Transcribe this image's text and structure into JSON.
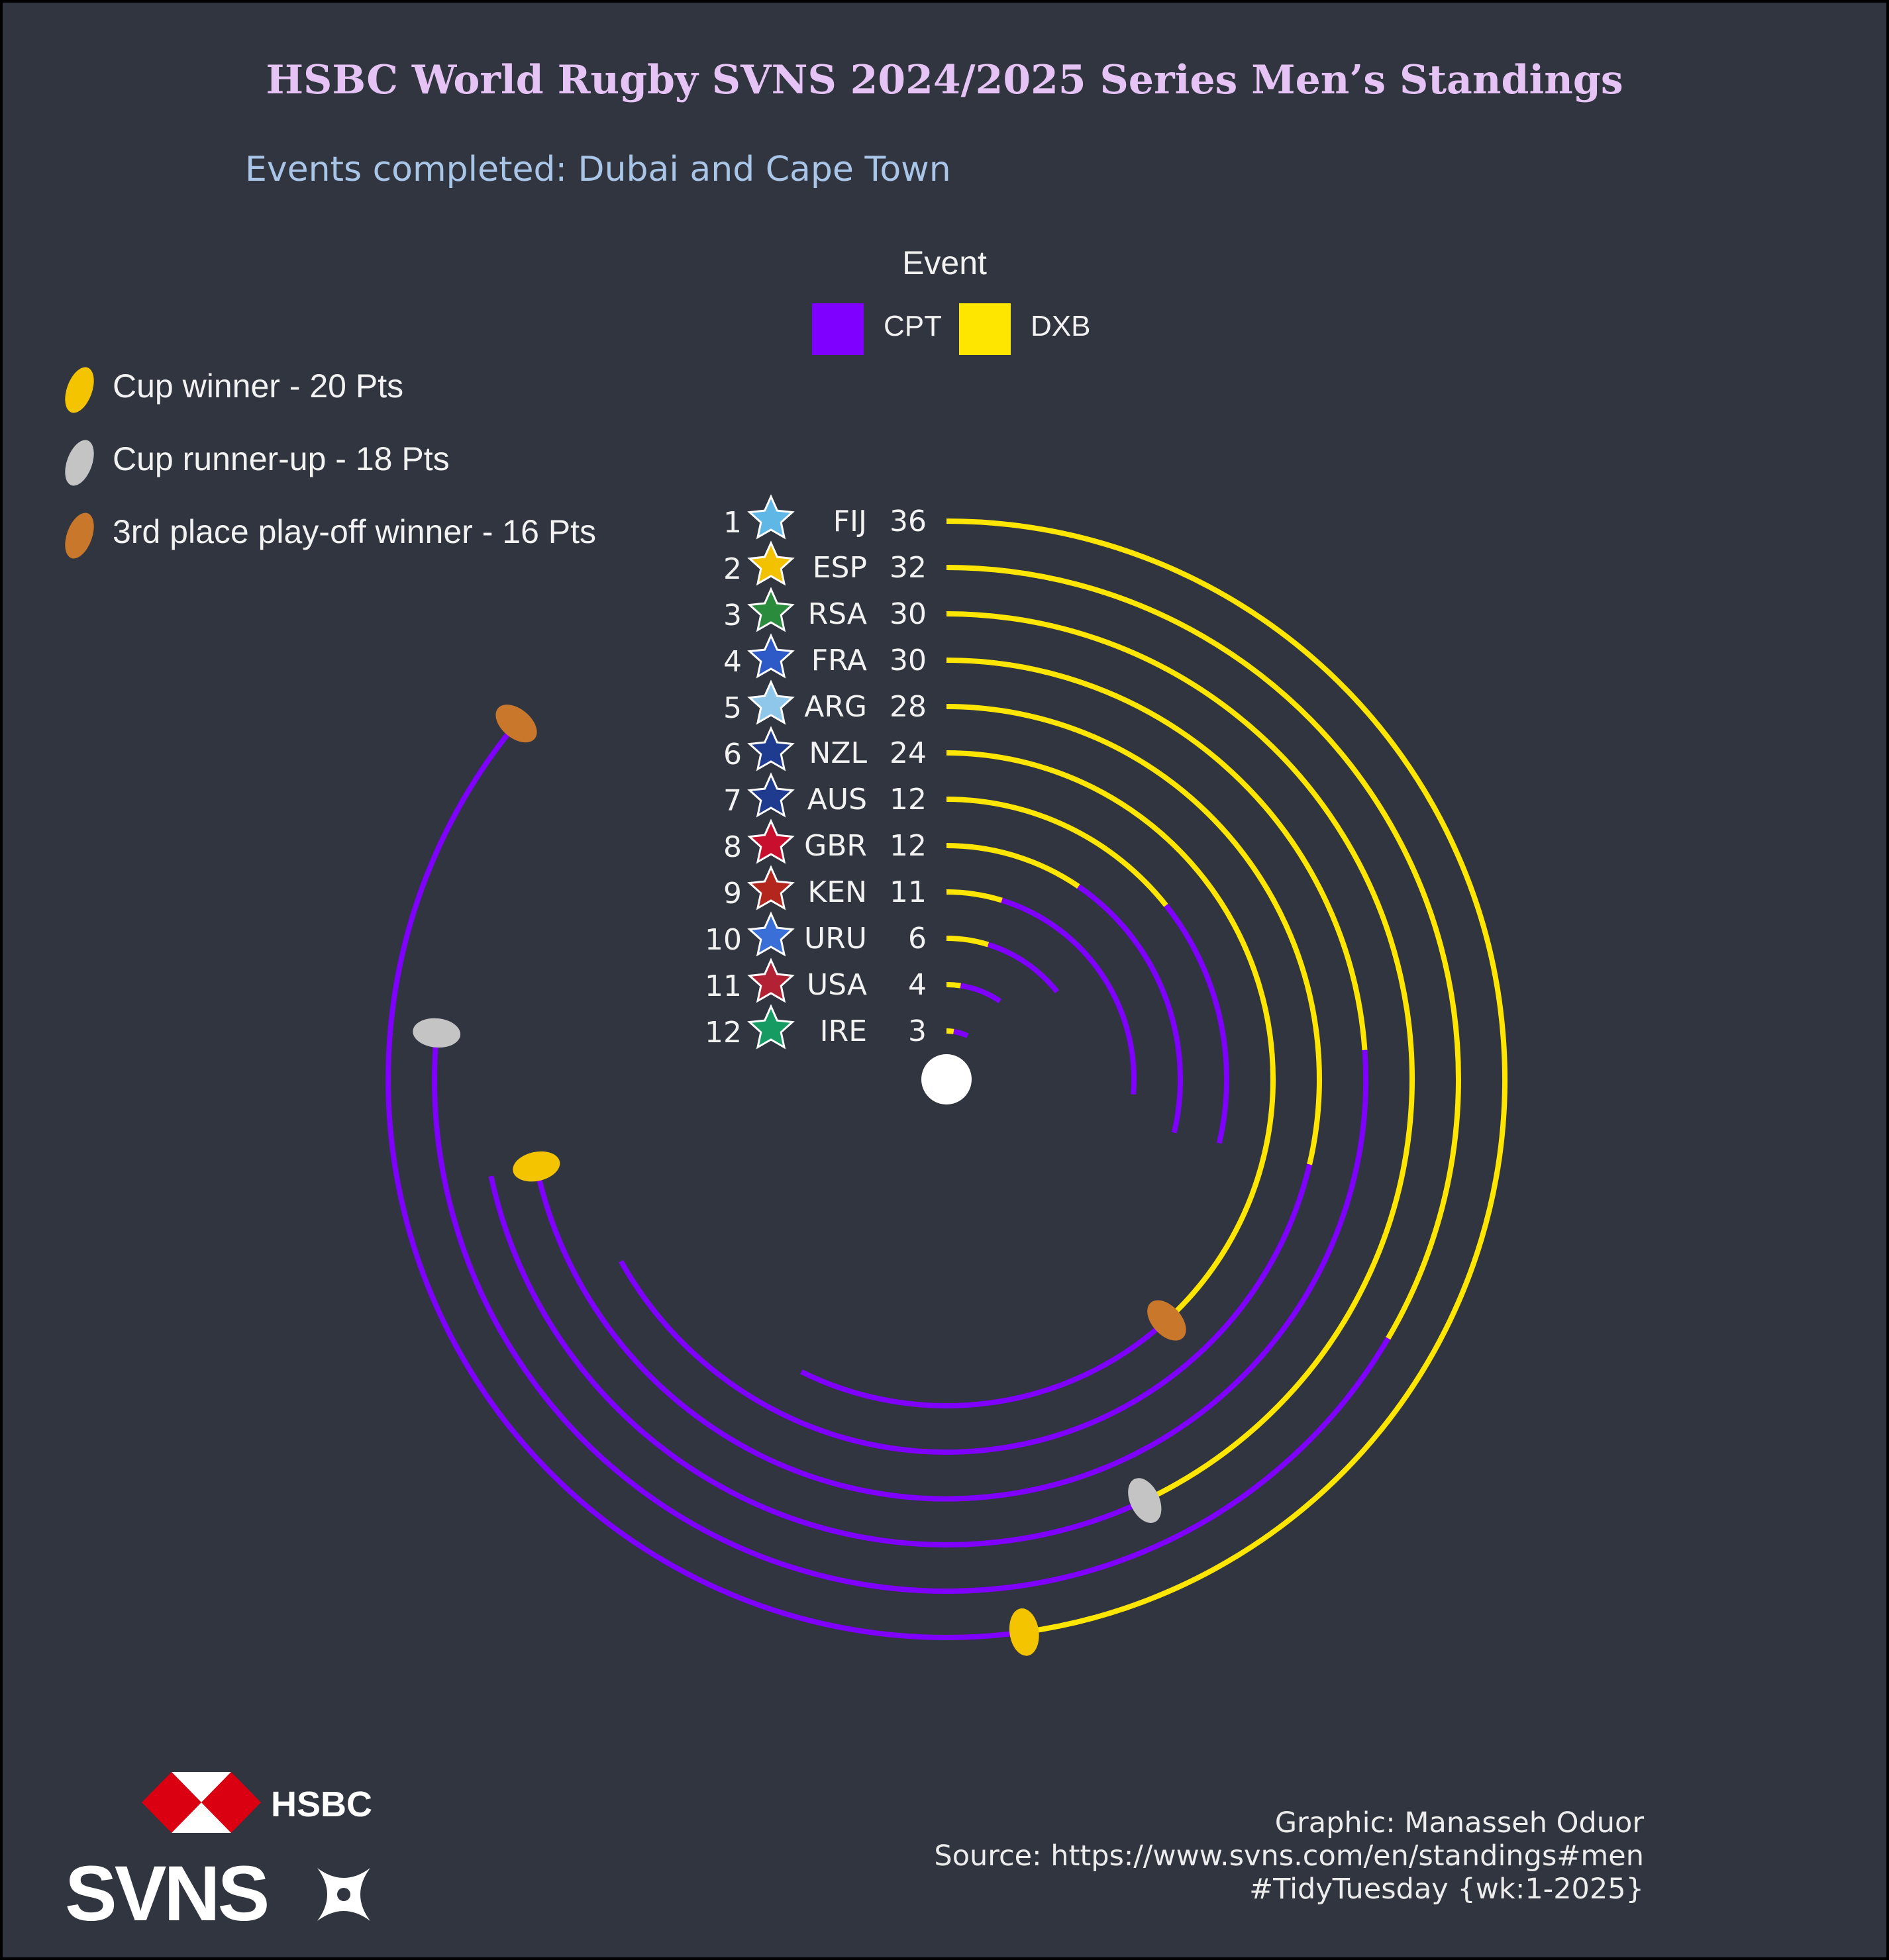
{
  "title": "HSBC World Rugby SVNS 2024/2025 Series Men’s Standings",
  "subtitle": "Events completed: Dubai and Cape Town",
  "colors": {
    "background": "#31353f",
    "CPT": "#7f00ff",
    "DXB": "#ffe600",
    "gold": "#f5c400",
    "silver": "#c4c4c4",
    "bronze": "#c9772b",
    "title": "#e6c3f5",
    "subtitle": "#a9c6e8"
  },
  "medal_legend": [
    {
      "label": "Cup winner - 20 Pts",
      "medal": "gold"
    },
    {
      "label": "Cup runner-up - 18 Pts",
      "medal": "silver"
    },
    {
      "label": "3rd place play-off winner - 16 Pts",
      "medal": "bronze"
    }
  ],
  "chart_data": {
    "type": "radial bar",
    "legend_title": "Event",
    "legend_placement": "top-center",
    "series": [
      {
        "name": "CPT"
      },
      {
        "name": "DXB"
      }
    ],
    "teams": [
      {
        "rank": "1",
        "team": "FIJ",
        "total": "36",
        "DXB": 20,
        "CPT": 16,
        "flag_icon": "fiji-flag-star-icon"
      },
      {
        "rank": "2",
        "team": "ESP",
        "total": "32",
        "DXB": 14,
        "CPT": 18,
        "flag_icon": "spain-flag-star-icon"
      },
      {
        "rank": "3",
        "team": "RSA",
        "total": "30",
        "DXB": 18,
        "CPT": 12,
        "flag_icon": "south-africa-flag-star-icon"
      },
      {
        "rank": "4",
        "team": "FRA",
        "total": "30",
        "DXB": 10,
        "CPT": 20,
        "flag_icon": "france-flag-star-icon"
      },
      {
        "rank": "5",
        "team": "ARG",
        "total": "28",
        "DXB": 12,
        "CPT": 16,
        "flag_icon": "argentina-flag-star-icon"
      },
      {
        "rank": "6",
        "team": "NZL",
        "total": "24",
        "DXB": 16,
        "CPT": 8,
        "flag_icon": "new-zealand-flag-star-icon"
      },
      {
        "rank": "7",
        "team": "AUS",
        "total": "12",
        "DXB": 6,
        "CPT": 6,
        "flag_icon": "australia-flag-star-icon"
      },
      {
        "rank": "8",
        "team": "GBR",
        "total": "12",
        "DXB": 4,
        "CPT": 8,
        "flag_icon": "great-britain-flag-star-icon"
      },
      {
        "rank": "9",
        "team": "KEN",
        "total": "11",
        "DXB": 2,
        "CPT": 9,
        "flag_icon": "kenya-flag-star-icon"
      },
      {
        "rank": "10",
        "team": "URU",
        "total": "6",
        "DXB": 2,
        "CPT": 4,
        "flag_icon": "uruguay-flag-star-icon"
      },
      {
        "rank": "11",
        "team": "USA",
        "total": "4",
        "DXB": 1,
        "CPT": 3,
        "flag_icon": "usa-flag-star-icon"
      },
      {
        "rank": "12",
        "team": "IRE",
        "total": "3",
        "DXB": 1,
        "CPT": 2,
        "flag_icon": "ireland-flag-star-icon"
      }
    ],
    "medals": [
      {
        "team": "FIJ",
        "event": "DXB",
        "medal": "gold"
      },
      {
        "team": "RSA",
        "event": "DXB",
        "medal": "silver"
      },
      {
        "team": "NZL",
        "event": "DXB",
        "medal": "bronze"
      },
      {
        "team": "FRA",
        "event": "CPT",
        "medal": "gold"
      },
      {
        "team": "ESP",
        "event": "CPT",
        "medal": "silver"
      },
      {
        "team": "FIJ",
        "event": "CPT",
        "medal": "bronze"
      }
    ]
  },
  "credits": {
    "line1": "Graphic: Manasseh Oduor",
    "line2": "Source: https://www.svns.com/en/standings#men",
    "line3": "#TidyTuesday {wk:1-2025}"
  },
  "logos": {
    "hsbc": "HSBC",
    "svns": "SVNS"
  }
}
